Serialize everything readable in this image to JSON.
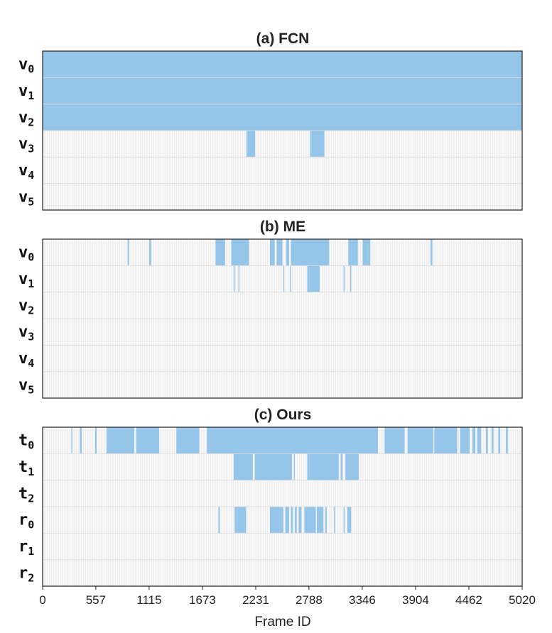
{
  "chart_data": [
    {
      "type": "heatmap",
      "title": "(a) FCN",
      "x_range": [
        0,
        5020
      ],
      "active_color": "#95c5e8",
      "rows": [
        {
          "name": "v",
          "sub": "0",
          "segments": [
            [
              0,
              5020
            ]
          ]
        },
        {
          "name": "v",
          "sub": "1",
          "segments": [
            [
              0,
              5020
            ]
          ]
        },
        {
          "name": "v",
          "sub": "2",
          "segments": [
            [
              0,
              5020
            ]
          ]
        },
        {
          "name": "v",
          "sub": "3",
          "segments": [
            [
              2133,
              2225
            ],
            [
              2800,
              2950
            ]
          ]
        },
        {
          "name": "v",
          "sub": "4",
          "segments": []
        },
        {
          "name": "v",
          "sub": "5",
          "segments": []
        }
      ]
    },
    {
      "type": "heatmap",
      "title": "(b) ME",
      "x_range": [
        0,
        5020
      ],
      "active_color": "#95c5e8",
      "rows": [
        {
          "name": "v",
          "sub": "0",
          "segments": [
            [
              890,
              905
            ],
            [
              1115,
              1135
            ],
            [
              1810,
              1910
            ],
            [
              1975,
              2160
            ],
            [
              2380,
              2430
            ],
            [
              2450,
              2510
            ],
            [
              2550,
              2580
            ],
            [
              2600,
              3000
            ],
            [
              3200,
              3300
            ],
            [
              3350,
              3400
            ],
            [
              3400,
              3430
            ],
            [
              4060,
              4080
            ]
          ]
        },
        {
          "name": "v",
          "sub": "1",
          "segments": [
            [
              2000,
              2010
            ],
            [
              2050,
              2060
            ],
            [
              2520,
              2530
            ],
            [
              2590,
              2600
            ],
            [
              2770,
              2900
            ],
            [
              3150,
              3160
            ],
            [
              3220,
              3230
            ]
          ]
        },
        {
          "name": "v",
          "sub": "2",
          "segments": []
        },
        {
          "name": "v",
          "sub": "3",
          "segments": []
        },
        {
          "name": "v",
          "sub": "4",
          "segments": []
        },
        {
          "name": "v",
          "sub": "5",
          "segments": []
        }
      ]
    },
    {
      "type": "heatmap",
      "title": "(c) Ours",
      "x_range": [
        0,
        5020
      ],
      "active_color": "#95c5e8",
      "rows": [
        {
          "name": "t",
          "sub": "0",
          "segments": [
            [
              300,
              310
            ],
            [
              390,
              410
            ],
            [
              550,
              565
            ],
            [
              670,
              960
            ],
            [
              980,
              1220
            ],
            [
              1400,
              1640
            ],
            [
              1720,
              3510
            ],
            [
              3580,
              3780
            ],
            [
              3780,
              3790
            ],
            [
              3820,
              4090
            ],
            [
              4100,
              4340
            ],
            [
              4370,
              4470
            ],
            [
              4500,
              4530
            ],
            [
              4550,
              4590
            ],
            [
              4640,
              4660
            ],
            [
              4700,
              4720
            ],
            [
              4770,
              4790
            ],
            [
              4850,
              4870
            ]
          ]
        },
        {
          "name": "t",
          "sub": "1",
          "segments": [
            [
              2000,
              2200
            ],
            [
              2220,
              2610
            ],
            [
              2630,
              2640
            ],
            [
              2770,
              3100
            ],
            [
              3120,
              3140
            ],
            [
              3170,
              3310
            ]
          ]
        },
        {
          "name": "t",
          "sub": "2",
          "segments": []
        },
        {
          "name": "r",
          "sub": "0",
          "segments": [
            [
              1840,
              1855
            ],
            [
              2010,
              2130
            ],
            [
              2380,
              2520
            ],
            [
              2540,
              2580
            ],
            [
              2600,
              2620
            ],
            [
              2640,
              2660
            ],
            [
              2680,
              2710
            ],
            [
              2740,
              2860
            ],
            [
              2870,
              2940
            ],
            [
              2960,
              2975
            ],
            [
              3050,
              3060
            ],
            [
              3150,
              3160
            ],
            [
              3190,
              3230
            ]
          ]
        },
        {
          "name": "r",
          "sub": "1",
          "segments": []
        },
        {
          "name": "r",
          "sub": "2",
          "segments": []
        }
      ]
    }
  ],
  "x_axis": {
    "label": "Frame ID",
    "ticks": [
      0,
      557,
      1115,
      1673,
      2231,
      2788,
      3346,
      3904,
      4462,
      5020
    ]
  }
}
